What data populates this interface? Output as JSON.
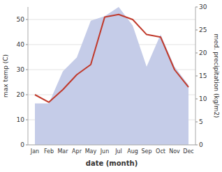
{
  "chart_data": {
    "type": "line",
    "xlabel": "date (month)",
    "ylabel": "max temp (C)",
    "y2label": "med. precipitation (kg/m2)",
    "categories": [
      "Jan",
      "Feb",
      "Mar",
      "Apr",
      "May",
      "Jun",
      "Jul",
      "Aug",
      "Sep",
      "Oct",
      "Nov",
      "Dec"
    ],
    "series": [
      {
        "type": "area",
        "axis": "y2",
        "color": "#c5cce8",
        "values": [
          9,
          9,
          16,
          19,
          27,
          28,
          30,
          26,
          17,
          24,
          17,
          13
        ]
      },
      {
        "type": "line",
        "color": "#c0392b",
        "values": [
          20,
          17,
          22,
          28,
          32,
          51,
          52,
          50,
          44,
          43,
          30,
          23
        ]
      }
    ],
    "ylim": [
      0,
      55
    ],
    "yticks": [
      0,
      10,
      20,
      30,
      40,
      50
    ],
    "y2lim": [
      0,
      30
    ],
    "y2ticks": [
      0,
      5,
      10,
      15,
      20,
      25,
      30
    ],
    "grid": true
  }
}
